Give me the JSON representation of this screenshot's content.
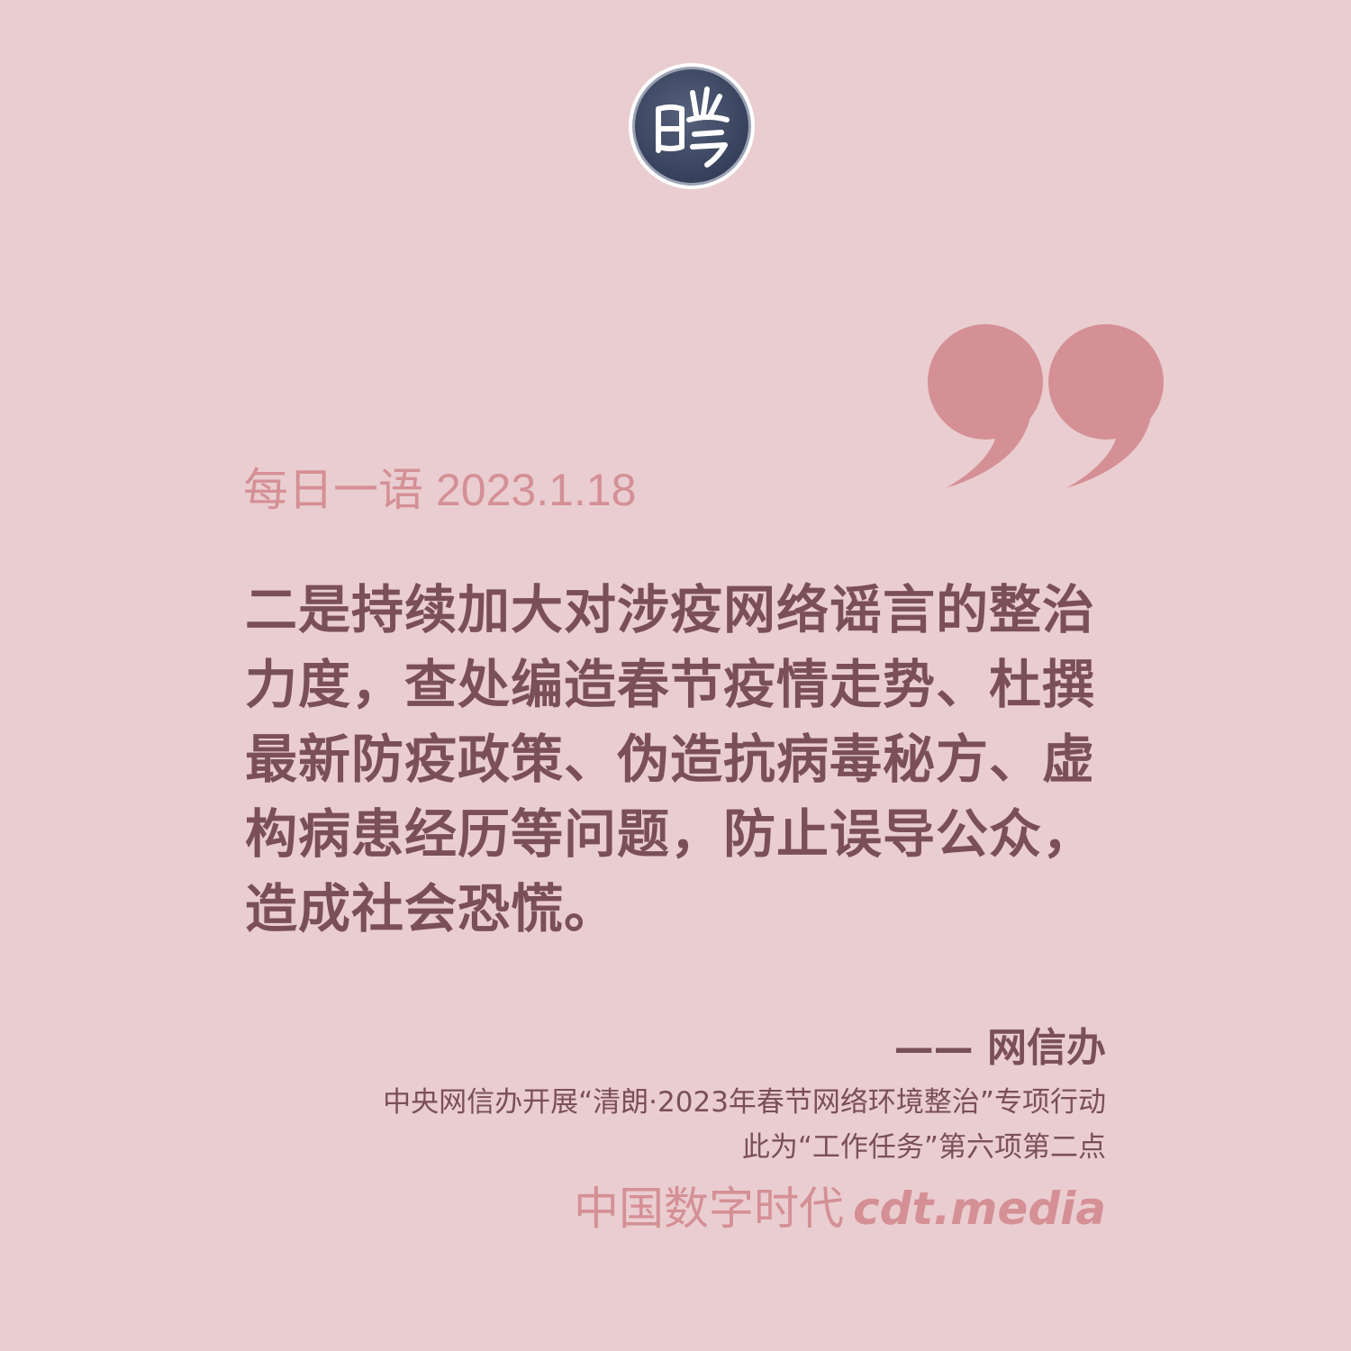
{
  "colors": {
    "background": "#eacdd0",
    "accent": "#d49095",
    "text": "#7a5056",
    "logo_dark": "#3c4763",
    "logo_ring": "#ffffff"
  },
  "header": {
    "logo_icon": "cdt-seal-logo-icon",
    "quote_icon": "closing-quote-icon"
  },
  "date_line": {
    "label": "每日一语",
    "date": "2023.1.18"
  },
  "quote": {
    "lines": [
      "二是持续加大对涉疫网络谣言的整治",
      "力度，查处编造春节疫情走势、杜撰",
      "最新防疫政策、伪造抗病毒秘方、虚",
      "构病患经历等问题，防止误导公众，",
      "造成社会恐慌。"
    ]
  },
  "attribution": {
    "text": "—— 网信办"
  },
  "source": {
    "line1": "中央网信办开展“清朗·2023年春节网络环境整治”专项行动",
    "line2": "此为“工作任务”第六项第二点"
  },
  "brand": {
    "name": "中国数字时代",
    "url": "cdt.media"
  }
}
